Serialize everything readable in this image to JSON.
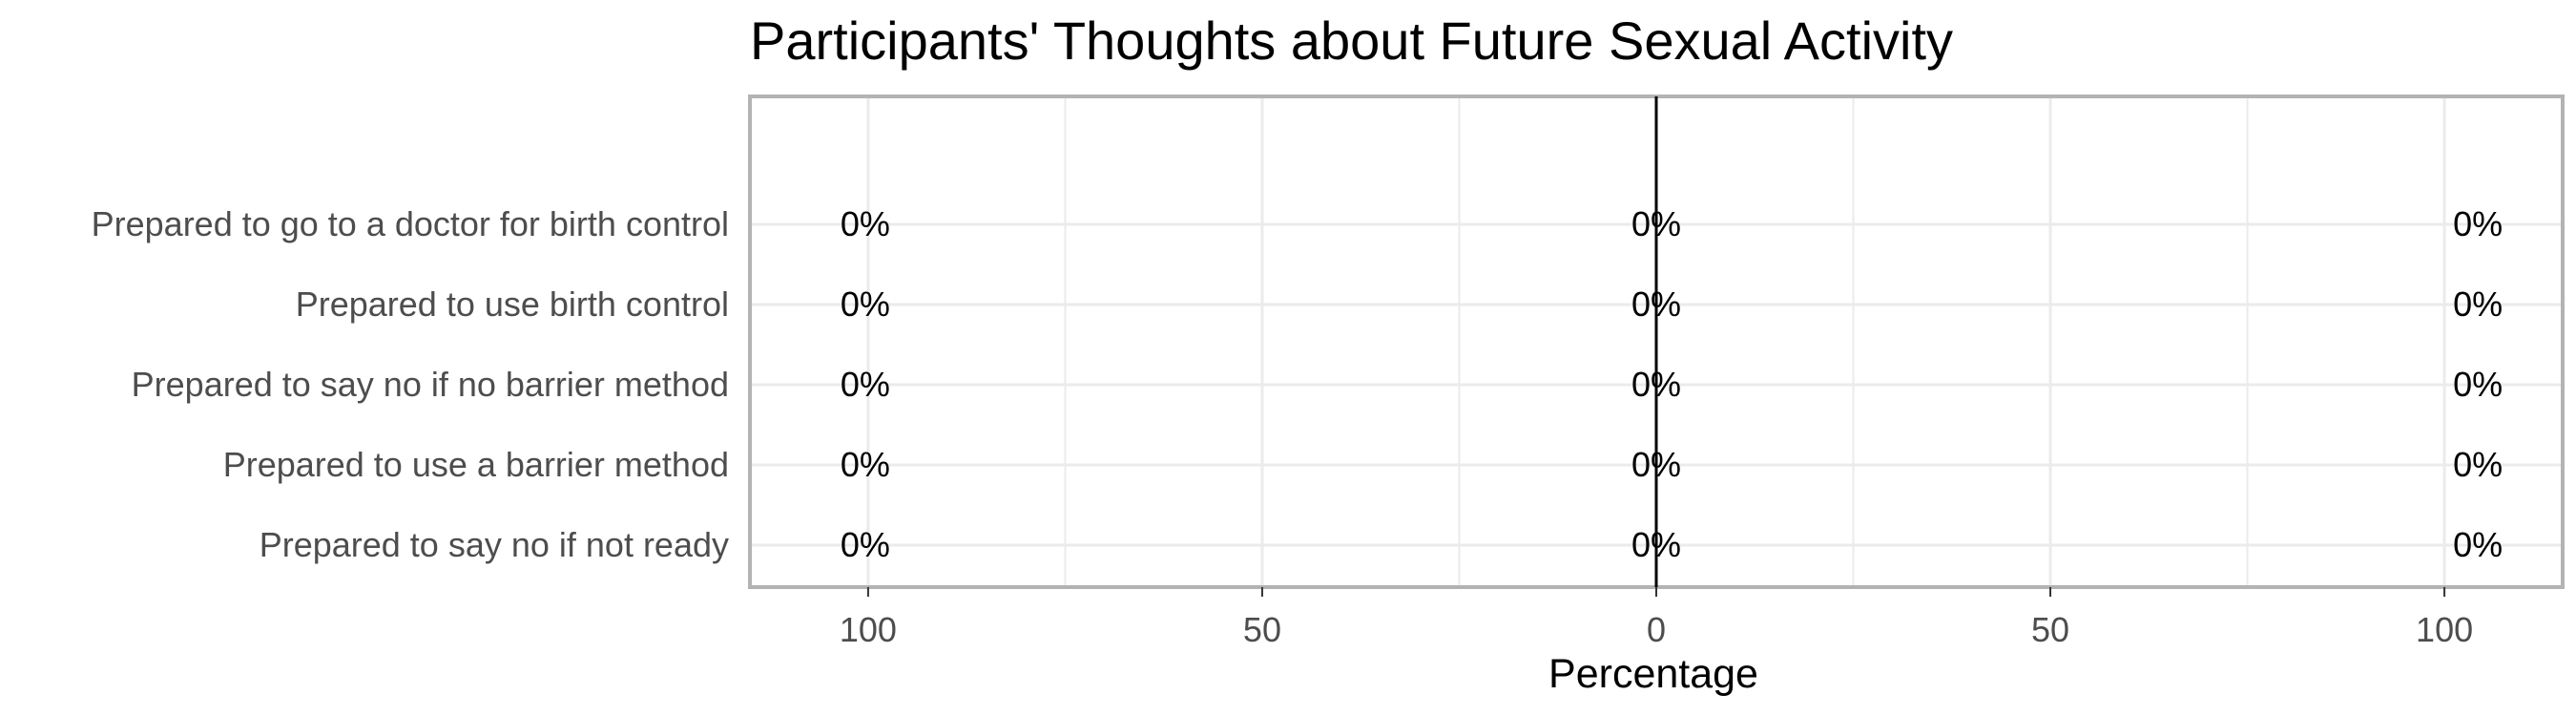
{
  "chart_data": {
    "type": "bar",
    "orientation": "horizontal",
    "diverging": true,
    "title": "Participants' Thoughts about Future Sexual Activity",
    "xlabel": "Percentage",
    "ylabel": "",
    "xlim": [
      -115,
      115
    ],
    "x_ticks": [
      -100,
      -50,
      0,
      50,
      100
    ],
    "x_tick_labels": [
      "100",
      "50",
      "0",
      "50",
      "100"
    ],
    "categories": [
      "Prepared to go to a doctor for birth control",
      "Prepared to use birth control",
      "Prepared to say no if no barrier method",
      "Prepared to use a barrier method",
      "Prepared to say no if not ready"
    ],
    "values": [
      0,
      0,
      0,
      0,
      0
    ],
    "left_labels": [
      "0%",
      "0%",
      "0%",
      "0%",
      "0%"
    ],
    "center_labels": [
      "0%",
      "0%",
      "0%",
      "0%",
      "0%"
    ],
    "right_labels": [
      "0%",
      "0%",
      "0%",
      "0%",
      "0%"
    ],
    "grid": true,
    "legend": "none",
    "colors": {
      "grid": "#ebebeb",
      "panel_border": "#b3b3b3",
      "zero_line": "#000000"
    }
  }
}
